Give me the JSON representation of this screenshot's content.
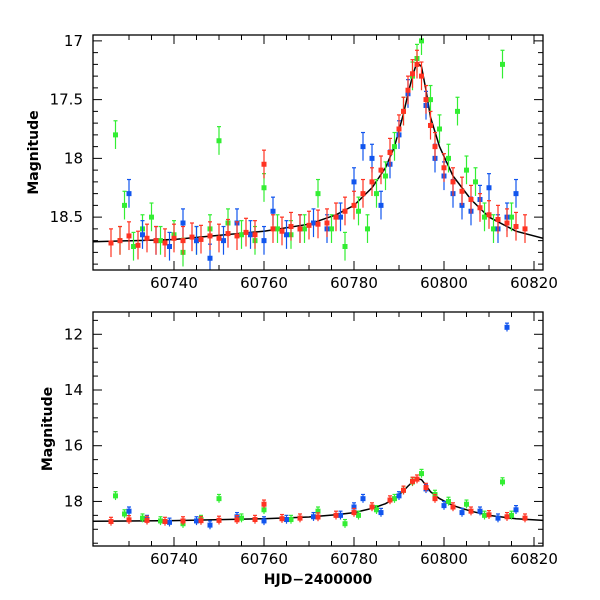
{
  "figure": {
    "xlabel": "HJD−2400000",
    "colors": {
      "green": "#33ee33",
      "blue": "#1155ee",
      "red": "#ff3322",
      "model": "#000000"
    }
  },
  "chart_data": [
    {
      "type": "scatter",
      "panel": "top",
      "ylabel": "Magnitude",
      "xlim": [
        60722,
        60822
      ],
      "ylim": [
        18.95,
        16.95
      ],
      "y_inverted": true,
      "xticks": [
        60740,
        60760,
        60780,
        60800,
        60820
      ],
      "yticks": [
        17,
        17.5,
        18,
        18.5
      ],
      "grid": false,
      "series": [
        {
          "color": "green",
          "points": [
            [
              60727,
              17.8
            ],
            [
              60728,
              18.7
            ],
            [
              60729,
              18.4
            ],
            [
              60731,
              18.75
            ],
            [
              60733,
              18.6
            ],
            [
              60735,
              18.5
            ],
            [
              60737,
              18.7
            ],
            [
              60740,
              18.65
            ],
            [
              60742,
              18.8
            ],
            [
              60745,
              18.7
            ],
            [
              60748,
              18.6
            ],
            [
              60750,
              17.85
            ],
            [
              60752,
              18.55
            ],
            [
              60755,
              18.65
            ],
            [
              60758,
              18.7
            ],
            [
              60760,
              18.25
            ],
            [
              60763,
              18.6
            ],
            [
              60766,
              18.65
            ],
            [
              60769,
              18.6
            ],
            [
              60772,
              18.3
            ],
            [
              60775,
              18.6
            ],
            [
              60778,
              18.75
            ],
            [
              60781,
              18.45
            ],
            [
              60783,
              18.6
            ],
            [
              60785,
              18.3
            ],
            [
              60787,
              18.15
            ],
            [
              60789,
              17.9
            ],
            [
              60791,
              17.6
            ],
            [
              60793,
              17.3
            ],
            [
              60794,
              17.15
            ],
            [
              60795,
              17.0
            ],
            [
              60797,
              17.5
            ],
            [
              60799,
              17.75
            ],
            [
              60801,
              18.0
            ],
            [
              60803,
              17.6
            ],
            [
              60805,
              18.1
            ],
            [
              60807,
              18.2
            ],
            [
              60809,
              18.5
            ],
            [
              60811,
              18.6
            ],
            [
              60813,
              17.2
            ],
            [
              60815,
              18.5
            ]
          ]
        },
        {
          "color": "blue",
          "points": [
            [
              60730,
              18.3
            ],
            [
              60733,
              18.65
            ],
            [
              60736,
              18.7
            ],
            [
              60739,
              18.75
            ],
            [
              60742,
              18.55
            ],
            [
              60745,
              18.7
            ],
            [
              60748,
              18.85
            ],
            [
              60751,
              18.7
            ],
            [
              60754,
              18.55
            ],
            [
              60757,
              18.65
            ],
            [
              60760,
              18.7
            ],
            [
              60762,
              18.45
            ],
            [
              60765,
              18.65
            ],
            [
              60768,
              18.6
            ],
            [
              60771,
              18.55
            ],
            [
              60774,
              18.6
            ],
            [
              60777,
              18.5
            ],
            [
              60780,
              18.2
            ],
            [
              60782,
              17.9
            ],
            [
              60784,
              18.0
            ],
            [
              60786,
              18.4
            ],
            [
              60788,
              18.05
            ],
            [
              60790,
              17.8
            ],
            [
              60792,
              17.45
            ],
            [
              60796,
              17.55
            ],
            [
              60798,
              18.0
            ],
            [
              60800,
              18.15
            ],
            [
              60802,
              18.3
            ],
            [
              60804,
              18.4
            ],
            [
              60806,
              18.45
            ],
            [
              60808,
              18.35
            ],
            [
              60810,
              18.25
            ],
            [
              60812,
              18.6
            ],
            [
              60814,
              18.5
            ],
            [
              60816,
              18.3
            ]
          ]
        },
        {
          "color": "red",
          "points": [
            [
              60726,
              18.72
            ],
            [
              60728,
              18.7
            ],
            [
              60730,
              18.66
            ],
            [
              60732,
              18.74
            ],
            [
              60734,
              18.68
            ],
            [
              60736,
              18.7
            ],
            [
              60738,
              18.72
            ],
            [
              60740,
              18.68
            ],
            [
              60742,
              18.7
            ],
            [
              60744,
              18.67
            ],
            [
              60746,
              18.69
            ],
            [
              60748,
              18.66
            ],
            [
              60750,
              18.68
            ],
            [
              60752,
              18.64
            ],
            [
              60754,
              18.66
            ],
            [
              60756,
              18.63
            ],
            [
              60758,
              18.65
            ],
            [
              60760,
              18.05
            ],
            [
              60762,
              18.6
            ],
            [
              60764,
              18.62
            ],
            [
              60766,
              18.58
            ],
            [
              60768,
              18.6
            ],
            [
              60770,
              18.57
            ],
            [
              60772,
              18.56
            ],
            [
              60774,
              18.55
            ],
            [
              60776,
              18.5
            ],
            [
              60778,
              18.45
            ],
            [
              60780,
              18.4
            ],
            [
              60782,
              18.3
            ],
            [
              60784,
              18.2
            ],
            [
              60786,
              18.1
            ],
            [
              60788,
              17.95
            ],
            [
              60790,
              17.75
            ],
            [
              60791,
              17.6
            ],
            [
              60792,
              17.42
            ],
            [
              60793,
              17.28
            ],
            [
              60794,
              17.2
            ],
            [
              60795,
              17.3
            ],
            [
              60796,
              17.5
            ],
            [
              60797,
              17.72
            ],
            [
              60798,
              17.9
            ],
            [
              60800,
              18.08
            ],
            [
              60802,
              18.2
            ],
            [
              60804,
              18.28
            ],
            [
              60806,
              18.35
            ],
            [
              60808,
              18.42
            ],
            [
              60810,
              18.48
            ],
            [
              60812,
              18.52
            ],
            [
              60814,
              18.55
            ],
            [
              60816,
              18.58
            ],
            [
              60818,
              18.6
            ]
          ]
        }
      ],
      "model_curve": [
        [
          60722,
          18.71
        ],
        [
          60740,
          18.69
        ],
        [
          60760,
          18.62
        ],
        [
          60770,
          18.56
        ],
        [
          60776,
          18.48
        ],
        [
          60780,
          18.4
        ],
        [
          60784,
          18.25
        ],
        [
          60787,
          18.08
        ],
        [
          60789,
          17.9
        ],
        [
          60791,
          17.62
        ],
        [
          60792,
          17.45
        ],
        [
          60793,
          17.3
        ],
        [
          60794,
          17.18
        ],
        [
          60795,
          17.22
        ],
        [
          60796,
          17.42
        ],
        [
          60797,
          17.65
        ],
        [
          60799,
          17.9
        ],
        [
          60802,
          18.15
        ],
        [
          60806,
          18.35
        ],
        [
          60810,
          18.5
        ],
        [
          60816,
          18.62
        ],
        [
          60822,
          18.68
        ]
      ]
    },
    {
      "type": "scatter",
      "panel": "bottom",
      "ylabel": "Magnitude",
      "xlabel": "HJD−2400000",
      "xlim": [
        60722,
        60822
      ],
      "ylim": [
        19.6,
        11.2
      ],
      "y_inverted": true,
      "xticks": [
        60740,
        60760,
        60780,
        60800,
        60820
      ],
      "yticks": [
        12,
        14,
        16,
        18
      ],
      "grid": false,
      "series": [
        {
          "color": "green",
          "points": [
            [
              60727,
              17.8
            ],
            [
              60729,
              18.45
            ],
            [
              60733,
              18.6
            ],
            [
              60737,
              18.7
            ],
            [
              60742,
              18.8
            ],
            [
              60746,
              18.65
            ],
            [
              60750,
              17.9
            ],
            [
              60755,
              18.6
            ],
            [
              60760,
              18.3
            ],
            [
              60766,
              18.65
            ],
            [
              60772,
              18.35
            ],
            [
              60778,
              18.8
            ],
            [
              60781,
              18.5
            ],
            [
              60785,
              18.3
            ],
            [
              60789,
              17.9
            ],
            [
              60791,
              17.6
            ],
            [
              60793,
              17.3
            ],
            [
              60795,
              17.0
            ],
            [
              60798,
              17.75
            ],
            [
              60801,
              18.0
            ],
            [
              60805,
              18.1
            ],
            [
              60809,
              18.5
            ],
            [
              60813,
              17.3
            ],
            [
              60815,
              18.5
            ]
          ]
        },
        {
          "color": "blue",
          "points": [
            [
              60730,
              18.35
            ],
            [
              60734,
              18.65
            ],
            [
              60739,
              18.75
            ],
            [
              60745,
              18.7
            ],
            [
              60748,
              18.85
            ],
            [
              60754,
              18.55
            ],
            [
              60760,
              18.7
            ],
            [
              60765,
              18.65
            ],
            [
              60771,
              18.55
            ],
            [
              60777,
              18.5
            ],
            [
              60780,
              18.2
            ],
            [
              60782,
              17.9
            ],
            [
              60786,
              18.4
            ],
            [
              60790,
              17.8
            ],
            [
              60796,
              17.55
            ],
            [
              60800,
              18.15
            ],
            [
              60804,
              18.4
            ],
            [
              60808,
              18.35
            ],
            [
              60812,
              18.6
            ],
            [
              60814,
              11.75
            ],
            [
              60816,
              18.3
            ]
          ]
        },
        {
          "color": "red",
          "points": [
            [
              60726,
              18.72
            ],
            [
              60730,
              18.66
            ],
            [
              60734,
              18.68
            ],
            [
              60738,
              18.72
            ],
            [
              60742,
              18.7
            ],
            [
              60746,
              18.69
            ],
            [
              60750,
              18.68
            ],
            [
              60754,
              18.66
            ],
            [
              60758,
              18.65
            ],
            [
              60760,
              18.1
            ],
            [
              60764,
              18.62
            ],
            [
              60768,
              18.6
            ],
            [
              60772,
              18.56
            ],
            [
              60776,
              18.5
            ],
            [
              60780,
              18.4
            ],
            [
              60784,
              18.2
            ],
            [
              60788,
              17.95
            ],
            [
              60791,
              17.6
            ],
            [
              60793,
              17.28
            ],
            [
              60794,
              17.2
            ],
            [
              60796,
              17.5
            ],
            [
              60798,
              17.9
            ],
            [
              60802,
              18.2
            ],
            [
              60806,
              18.35
            ],
            [
              60810,
              18.48
            ],
            [
              60814,
              18.55
            ],
            [
              60818,
              18.6
            ]
          ]
        }
      ],
      "model_curve": [
        [
          60722,
          18.71
        ],
        [
          60740,
          18.69
        ],
        [
          60760,
          18.62
        ],
        [
          60770,
          18.56
        ],
        [
          60776,
          18.48
        ],
        [
          60780,
          18.4
        ],
        [
          60784,
          18.25
        ],
        [
          60787,
          18.08
        ],
        [
          60789,
          17.9
        ],
        [
          60791,
          17.62
        ],
        [
          60792,
          17.45
        ],
        [
          60793,
          17.3
        ],
        [
          60794,
          17.18
        ],
        [
          60795,
          17.22
        ],
        [
          60796,
          17.42
        ],
        [
          60797,
          17.65
        ],
        [
          60799,
          17.9
        ],
        [
          60802,
          18.15
        ],
        [
          60806,
          18.35
        ],
        [
          60810,
          18.5
        ],
        [
          60816,
          18.62
        ],
        [
          60822,
          18.68
        ]
      ]
    }
  ]
}
